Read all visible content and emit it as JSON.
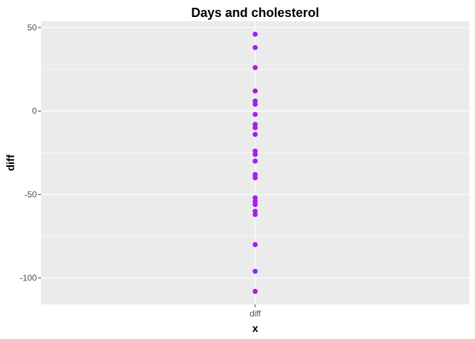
{
  "chart_data": {
    "type": "scatter",
    "title": "Days and cholesterol",
    "xlabel": "x",
    "ylabel": "diff",
    "x_categories": [
      "diff"
    ],
    "ylim": [
      -115.8,
      53.8
    ],
    "yticks": [
      50,
      0,
      -50,
      -100
    ],
    "ytick_labels": [
      "50",
      "0",
      "-50",
      "-100"
    ],
    "grid": true,
    "legend": "none",
    "point_color": "#A020F0",
    "panel_color": "#EBEBEB",
    "series": [
      {
        "category": "diff",
        "values": [
          46,
          38,
          26,
          12,
          6,
          4,
          -2,
          -8,
          -10,
          -14,
          -24,
          -26,
          -30,
          -38,
          -40,
          -52,
          -54,
          -56,
          -60,
          -62,
          -80,
          -96,
          -108
        ]
      }
    ]
  }
}
